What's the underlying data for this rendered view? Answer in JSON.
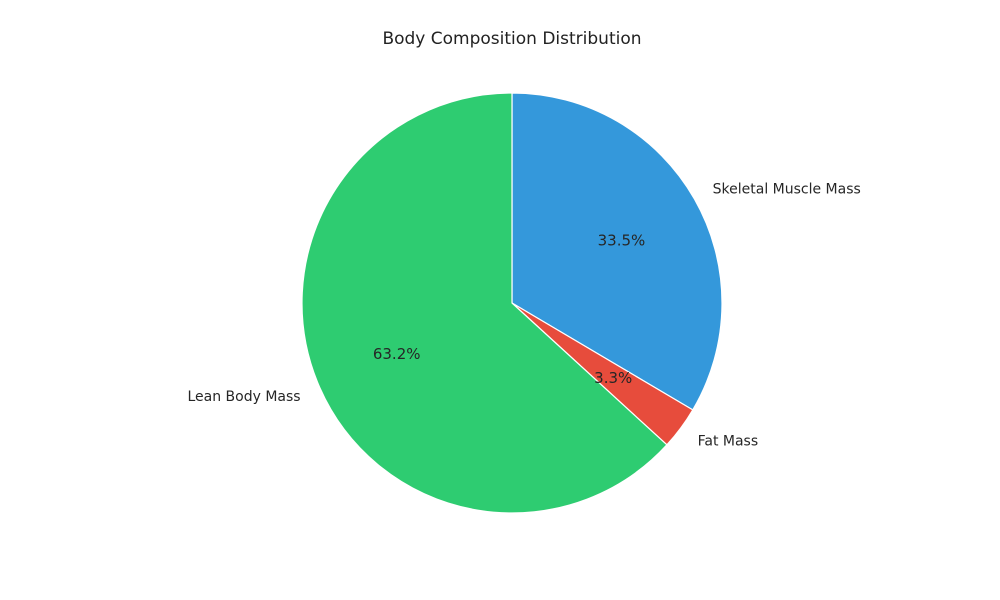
{
  "chart_data": {
    "type": "pie",
    "title": "Body Composition Distribution",
    "categories": [
      "Skeletal Muscle Mass",
      "Fat Mass",
      "Lean Body Mass"
    ],
    "values": [
      33.5,
      3.3,
      63.2
    ],
    "percent_labels": [
      "33.5%",
      "3.3%",
      "63.2%"
    ],
    "colors": [
      "#3498db",
      "#e74c3c",
      "#2ecc71"
    ],
    "start_angle_deg": 90,
    "direction": "clockwise",
    "edge_color": "#ffffff"
  }
}
